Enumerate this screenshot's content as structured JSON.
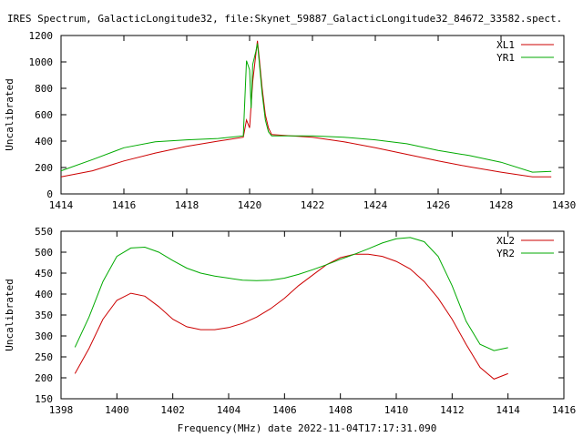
{
  "header": {
    "title": "IRES Spectrum, GalacticLongitude32, file:Skynet_59887_GalacticLongitude32_84672_33582.spect.",
    "xlabel": "Frequency(MHz) date 2022-11-04T17:17:31.090"
  },
  "chart_data": [
    {
      "type": "line",
      "ylabel": "Uncalibrated",
      "xlim": [
        1414,
        1430
      ],
      "ylim": [
        0,
        1200
      ],
      "xticks": [
        "1414",
        "1416",
        "1418",
        "1420",
        "1422",
        "1424",
        "1426",
        "1428",
        "1430"
      ],
      "yticks": [
        "0",
        "200",
        "400",
        "600",
        "800",
        "1000",
        "1200"
      ],
      "grid": false,
      "legend": "top-right",
      "series": [
        {
          "name": "XL1",
          "color": "#cc0000",
          "x": [
            1414.0,
            1415.0,
            1416.0,
            1417.0,
            1418.0,
            1419.0,
            1419.8,
            1419.9,
            1420.0,
            1420.1,
            1420.2,
            1420.25,
            1420.3,
            1420.4,
            1420.5,
            1420.6,
            1420.7,
            1421.0,
            1422.0,
            1423.0,
            1424.0,
            1425.0,
            1426.0,
            1427.0,
            1428.0,
            1429.0,
            1429.6
          ],
          "values": [
            130,
            175,
            250,
            310,
            360,
            400,
            430,
            560,
            500,
            850,
            1060,
            1160,
            1050,
            800,
            600,
            500,
            450,
            445,
            430,
            395,
            350,
            300,
            250,
            205,
            165,
            130,
            130
          ]
        },
        {
          "name": "YR1",
          "color": "#00aa00",
          "x": [
            1414.0,
            1415.0,
            1416.0,
            1417.0,
            1418.0,
            1419.0,
            1419.8,
            1419.9,
            1420.0,
            1420.05,
            1420.1,
            1420.2,
            1420.25,
            1420.3,
            1420.4,
            1420.5,
            1420.6,
            1420.7,
            1421.0,
            1422.0,
            1423.0,
            1424.0,
            1425.0,
            1426.0,
            1427.0,
            1428.0,
            1429.0,
            1429.6
          ],
          "values": [
            175,
            260,
            350,
            395,
            410,
            420,
            440,
            1010,
            940,
            650,
            980,
            1080,
            1140,
            1020,
            760,
            560,
            470,
            440,
            440,
            440,
            430,
            410,
            380,
            330,
            290,
            240,
            165,
            170
          ]
        }
      ]
    },
    {
      "type": "line",
      "ylabel": "Uncalibrated",
      "xlim": [
        1398,
        1416
      ],
      "ylim": [
        150,
        550
      ],
      "xticks": [
        "1398",
        "1400",
        "1402",
        "1404",
        "1406",
        "1408",
        "1410",
        "1412",
        "1414",
        "1416"
      ],
      "yticks": [
        "150",
        "200",
        "250",
        "300",
        "350",
        "400",
        "450",
        "500",
        "550"
      ],
      "grid": false,
      "legend": "top-right",
      "series": [
        {
          "name": "XL2",
          "color": "#cc0000",
          "x": [
            1398.5,
            1399.0,
            1399.5,
            1400.0,
            1400.5,
            1401.0,
            1401.5,
            1402.0,
            1402.5,
            1403.0,
            1403.5,
            1404.0,
            1404.5,
            1405.0,
            1405.5,
            1406.0,
            1406.5,
            1407.0,
            1407.5,
            1408.0,
            1408.5,
            1409.0,
            1409.5,
            1410.0,
            1410.5,
            1411.0,
            1411.5,
            1412.0,
            1412.5,
            1413.0,
            1413.5,
            1414.0
          ],
          "values": [
            210,
            270,
            340,
            385,
            402,
            395,
            370,
            340,
            322,
            315,
            315,
            320,
            330,
            345,
            365,
            390,
            420,
            445,
            470,
            487,
            495,
            495,
            490,
            478,
            460,
            430,
            390,
            340,
            280,
            225,
            197,
            210
          ]
        },
        {
          "name": "YR2",
          "color": "#00aa00",
          "x": [
            1398.5,
            1399.0,
            1399.5,
            1400.0,
            1400.5,
            1401.0,
            1401.5,
            1402.0,
            1402.5,
            1403.0,
            1403.5,
            1404.0,
            1404.5,
            1405.0,
            1405.5,
            1406.0,
            1406.5,
            1407.0,
            1407.5,
            1408.0,
            1408.5,
            1409.0,
            1409.5,
            1410.0,
            1410.5,
            1411.0,
            1411.5,
            1412.0,
            1412.5,
            1413.0,
            1413.5,
            1414.0
          ],
          "values": [
            273,
            345,
            430,
            490,
            510,
            512,
            500,
            480,
            462,
            450,
            443,
            438,
            433,
            432,
            433,
            438,
            447,
            458,
            470,
            483,
            495,
            508,
            522,
            532,
            535,
            525,
            490,
            420,
            335,
            280,
            265,
            272
          ]
        }
      ]
    }
  ]
}
